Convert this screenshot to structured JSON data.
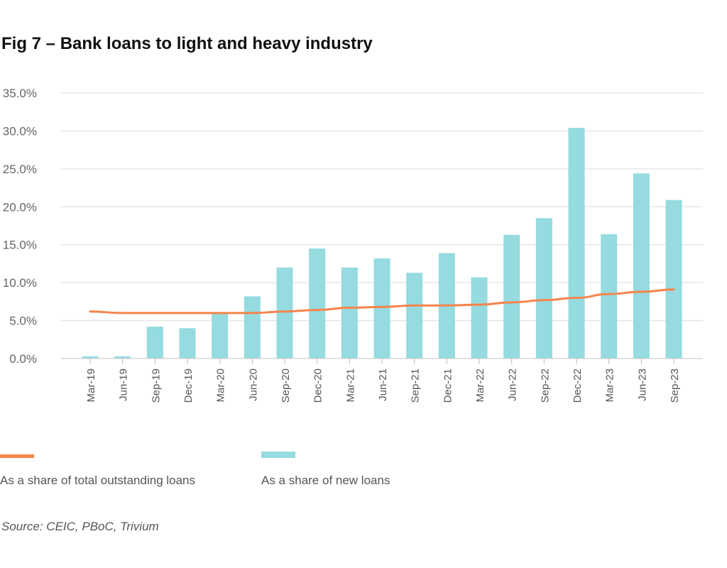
{
  "chart_data": {
    "type": "bar",
    "title": "Fig 7 – Bank loans to light and heavy industry",
    "categories": [
      "Mar-19",
      "Jun-19",
      "Sep-19",
      "Dec-19",
      "Mar-20",
      "Jun-20",
      "Sep-20",
      "Dec-20",
      "Mar-21",
      "Jun-21",
      "Sep-21",
      "Dec-21",
      "Mar-22",
      "Jun-22",
      "Sep-22",
      "Dec-22",
      "Mar-23",
      "Jun-23",
      "Sep-23"
    ],
    "series": [
      {
        "name": "As a share of total outstanding loans",
        "type": "line",
        "color": "#f7844b",
        "values": [
          6.2,
          6.0,
          6.0,
          6.0,
          6.0,
          6.0,
          6.2,
          6.4,
          6.7,
          6.8,
          7.0,
          7.0,
          7.1,
          7.4,
          7.7,
          8.0,
          8.5,
          8.8,
          9.1
        ]
      },
      {
        "name": "As a share of new loans",
        "type": "bar",
        "color": "#95dbe0",
        "values": [
          0.3,
          0.3,
          4.2,
          4.0,
          6.0,
          8.2,
          12.0,
          14.5,
          12.0,
          13.2,
          11.3,
          13.9,
          10.7,
          16.3,
          18.5,
          30.4,
          16.4,
          24.4,
          20.9
        ]
      }
    ],
    "ylim": [
      0,
      35
    ],
    "yticks": [
      "0.0%",
      "5.0%",
      "10.0%",
      "15.0%",
      "20.0%",
      "25.0%",
      "30.0%",
      "35.0%"
    ],
    "grid": true,
    "legend_position": "bottom",
    "xlabel": "",
    "ylabel": ""
  },
  "source": "Source: CEIC, PBoC, Trivium"
}
